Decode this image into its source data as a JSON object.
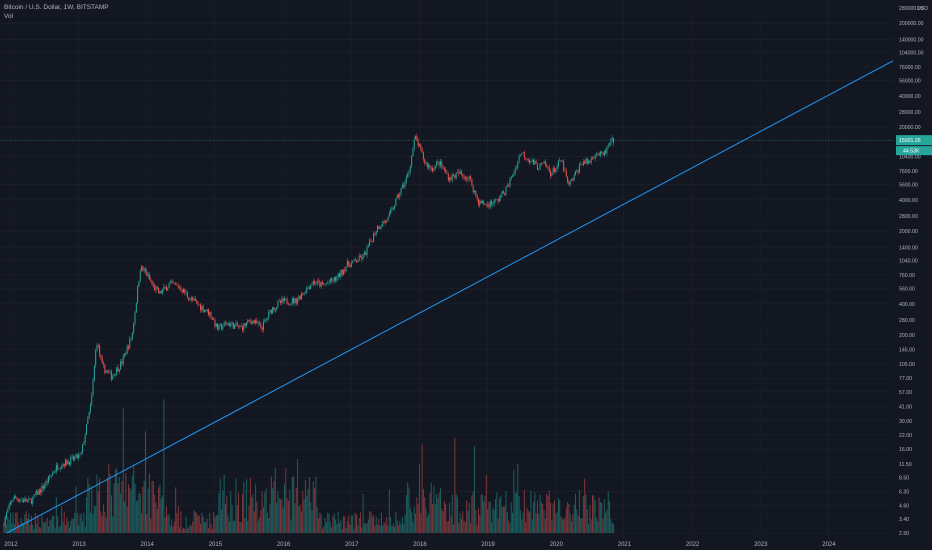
{
  "header": {
    "symbol_line": "Bitcoin / U.S. Dollar, 1W, BITSTAMP",
    "volume_label": "Vol"
  },
  "colors": {
    "background": "#131722",
    "grid": "#1e222d",
    "up": "#26a69a",
    "down": "#ef5350",
    "trendline": "#2196f3",
    "axis_text": "#b2b5be",
    "last_price_bg": "#26a69a"
  },
  "chart_data": {
    "type": "candlestick",
    "symbol": "Bitcoin / U.S. Dollar",
    "interval": "1W",
    "exchange": "BITSTAMP",
    "scale": "log",
    "currency_label": "USD",
    "y_tick_labels": [
      "280000.00",
      "200000.00",
      "140000.00",
      "104000.00",
      "76000.00",
      "56000.00",
      "40000.00",
      "28000.00",
      "20000.00",
      "10400.00",
      "7600.00",
      "5600.00",
      "4000.00",
      "2800.00",
      "2000.00",
      "1400.00",
      "1040.00",
      "760.00",
      "560.00",
      "400.00",
      "280.00",
      "200.00",
      "145.00",
      "105.00",
      "77.00",
      "57.00",
      "41.00",
      "30.00",
      "22.00",
      "16.00",
      "11.50",
      "8.50",
      "6.30",
      "4.60",
      "3.40",
      "2.50"
    ],
    "x_tick_labels": [
      "2012",
      "2013",
      "2014",
      "2015",
      "2016",
      "2017",
      "2018",
      "2019",
      "2020",
      "2021",
      "2022",
      "2023",
      "2024"
    ],
    "ylim": [
      2.5,
      280000
    ],
    "xlim": [
      2011.85,
      2024.95
    ],
    "last_price_label": "15001.26",
    "last_volume_label": "44.53K",
    "price_anchors": [
      [
        2011.9,
        3.0
      ],
      [
        2012.05,
        5.5
      ],
      [
        2012.3,
        5.0
      ],
      [
        2012.5,
        7.0
      ],
      [
        2012.7,
        11.0
      ],
      [
        2012.9,
        12.5
      ],
      [
        2013.05,
        14.0
      ],
      [
        2013.2,
        45.0
      ],
      [
        2013.28,
        180.0
      ],
      [
        2013.36,
        100.0
      ],
      [
        2013.5,
        80.0
      ],
      [
        2013.65,
        110.0
      ],
      [
        2013.8,
        200.0
      ],
      [
        2013.92,
        900.0
      ],
      [
        2014.0,
        800.0
      ],
      [
        2014.1,
        600.0
      ],
      [
        2014.2,
        500.0
      ],
      [
        2014.35,
        620.0
      ],
      [
        2014.5,
        580.0
      ],
      [
        2014.65,
        450.0
      ],
      [
        2014.8,
        380.0
      ],
      [
        2014.95,
        320.0
      ],
      [
        2015.05,
        230.0
      ],
      [
        2015.2,
        260.0
      ],
      [
        2015.4,
        235.0
      ],
      [
        2015.55,
        280.0
      ],
      [
        2015.7,
        235.0
      ],
      [
        2015.85,
        360.0
      ],
      [
        2016.0,
        420.0
      ],
      [
        2016.2,
        430.0
      ],
      [
        2016.45,
        650.0
      ],
      [
        2016.6,
        600.0
      ],
      [
        2016.8,
        700.0
      ],
      [
        2016.95,
        950.0
      ],
      [
        2017.05,
        1000.0
      ],
      [
        2017.2,
        1150.0
      ],
      [
        2017.4,
        2200.0
      ],
      [
        2017.55,
        2600.0
      ],
      [
        2017.7,
        4300.0
      ],
      [
        2017.85,
        7000.0
      ],
      [
        2017.95,
        16000.0
      ],
      [
        2018.0,
        13500.0
      ],
      [
        2018.1,
        9000.0
      ],
      [
        2018.2,
        8000.0
      ],
      [
        2018.3,
        9200.0
      ],
      [
        2018.45,
        6500.0
      ],
      [
        2018.6,
        7200.0
      ],
      [
        2018.75,
        6400.0
      ],
      [
        2018.88,
        3800.0
      ],
      [
        2019.0,
        3600.0
      ],
      [
        2019.15,
        3900.0
      ],
      [
        2019.3,
        5200.0
      ],
      [
        2019.42,
        8000.0
      ],
      [
        2019.5,
        11500.0
      ],
      [
        2019.6,
        10200.0
      ],
      [
        2019.75,
        8300.0
      ],
      [
        2019.85,
        8800.0
      ],
      [
        2019.95,
        7200.0
      ],
      [
        2020.1,
        9600.0
      ],
      [
        2020.2,
        5400.0
      ],
      [
        2020.3,
        7000.0
      ],
      [
        2020.4,
        9300.0
      ],
      [
        2020.5,
        9200.0
      ],
      [
        2020.6,
        11500.0
      ],
      [
        2020.7,
        10500.0
      ],
      [
        2020.8,
        13500.0
      ],
      [
        2020.85,
        15000.0
      ]
    ],
    "trendline": {
      "start": [
        2011.95,
        2.5
      ],
      "end": [
        2024.95,
        87000
      ]
    }
  }
}
